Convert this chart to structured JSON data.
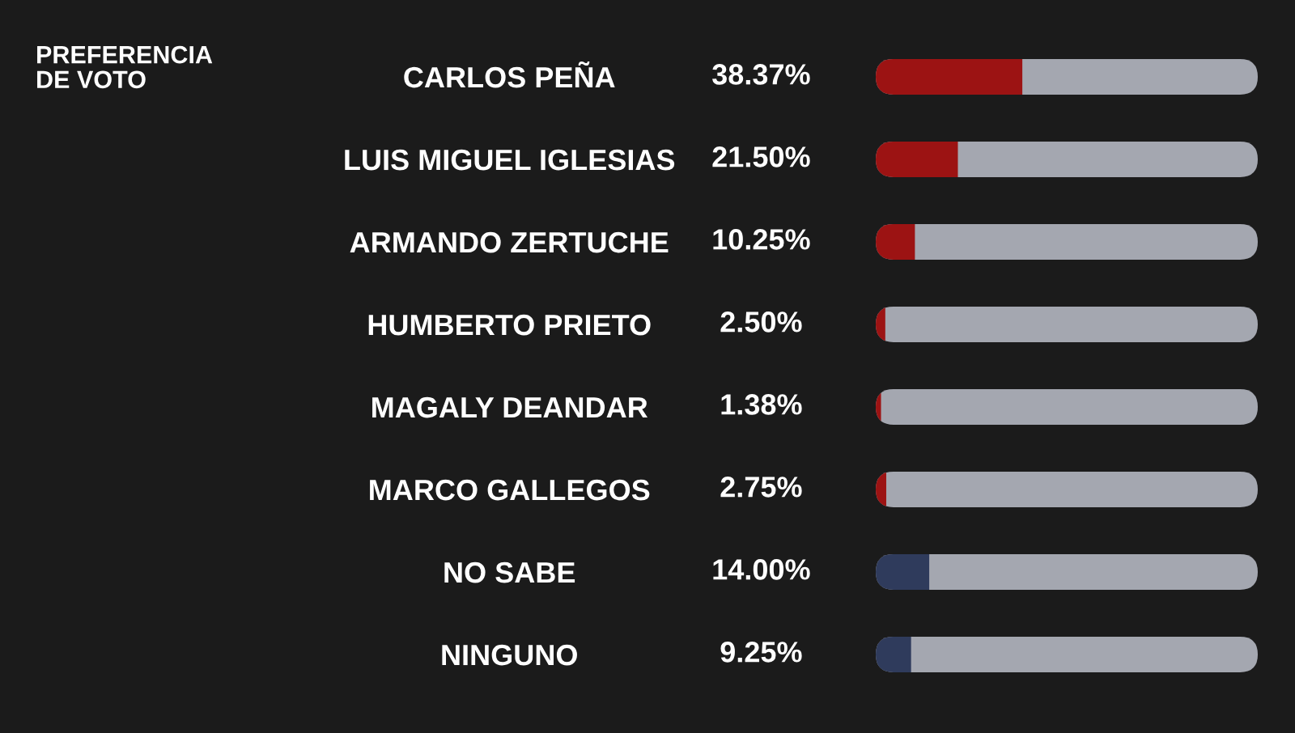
{
  "chart_data": {
    "type": "bar",
    "orientation": "horizontal",
    "title": "PREFERENCIA\nDE VOTO",
    "categories": [
      "CARLOS PEÑA",
      "LUIS MIGUEL IGLESIAS",
      "ARMANDO ZERTUCHE",
      "HUMBERTO PRIETO",
      "MAGALY DEANDAR",
      "MARCO GALLEGOS",
      "NO SABE",
      "NINGUNO"
    ],
    "values": [
      38.37,
      21.5,
      10.25,
      2.5,
      1.38,
      2.75,
      14.0,
      9.25
    ],
    "colors": [
      "#9c1313",
      "#9c1313",
      "#9c1313",
      "#9c1313",
      "#9c1313",
      "#9c1313",
      "#2f3b5c",
      "#2f3b5c"
    ],
    "value_labels": [
      "38.37%",
      "21.50%",
      "10.25%",
      "2.50%",
      "1.38%",
      "2.75%",
      "14.00%",
      "9.25%"
    ],
    "xlim": [
      0,
      100
    ],
    "tick_labels": "y",
    "grid": false,
    "legend": false
  }
}
